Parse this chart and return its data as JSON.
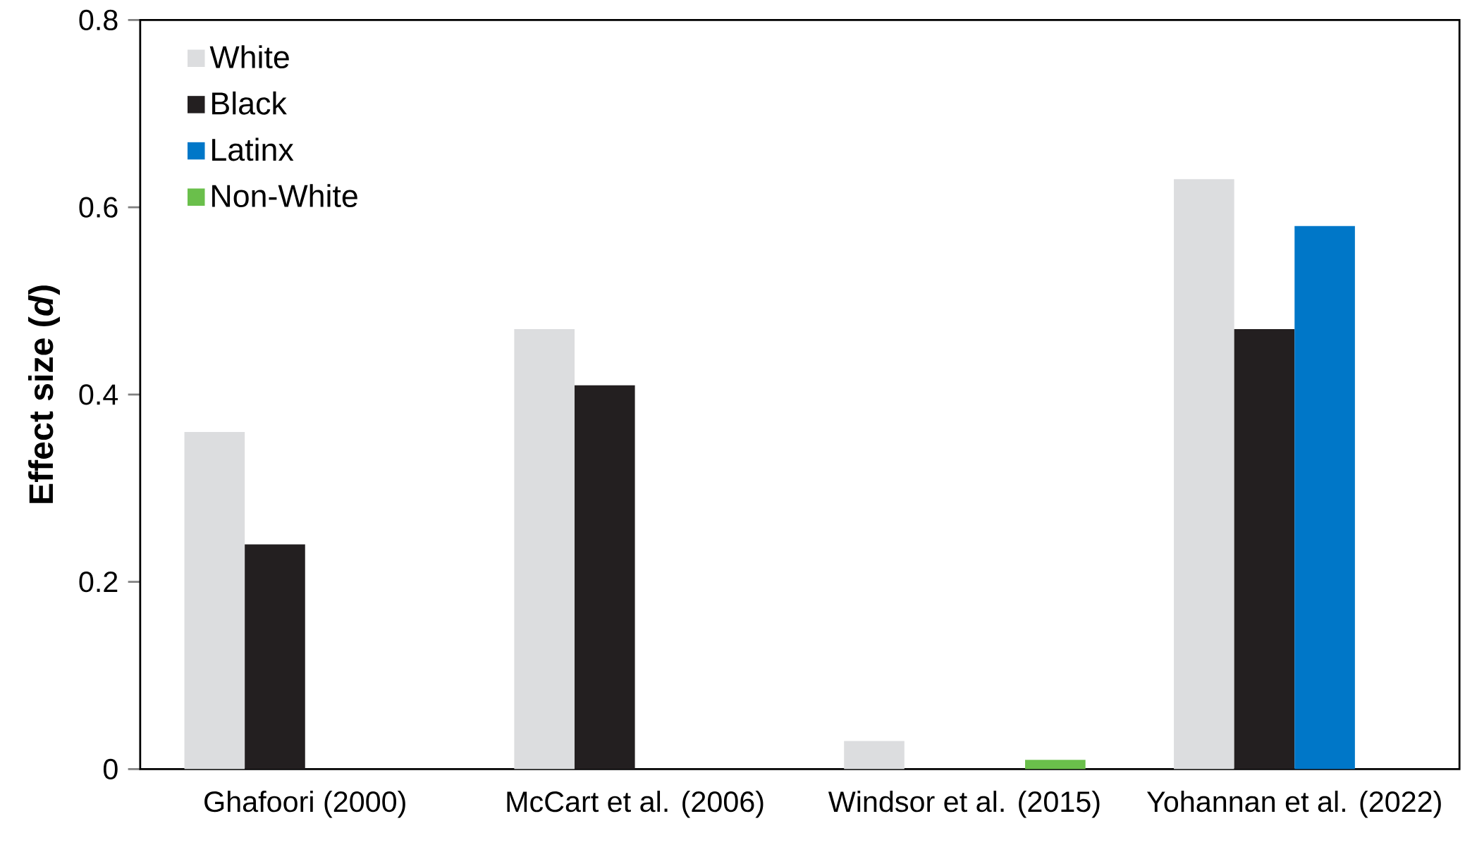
{
  "chart_data": {
    "type": "bar",
    "ylabel": "Effect size (*d*)",
    "categories": [
      "Ghafoori (2000)",
      "McCart et al. (2006)",
      "Windsor et al. (2015)",
      "Yohannan et al. (2022)"
    ],
    "series": [
      {
        "name": "White",
        "color": "#dcdddf",
        "values": [
          0.36,
          0.47,
          0.03,
          0.63
        ]
      },
      {
        "name": "Black",
        "color": "#231f20",
        "values": [
          0.24,
          0.41,
          null,
          0.47
        ]
      },
      {
        "name": "Latinx",
        "color": "#0077c8",
        "values": [
          null,
          null,
          null,
          0.58
        ]
      },
      {
        "name": "Non-White",
        "color": "#6abf4b",
        "values": [
          null,
          null,
          0.01,
          null
        ]
      }
    ],
    "ylim": [
      0,
      0.8
    ],
    "yticks": [
      0,
      0.2,
      0.4,
      0.6,
      0.8
    ],
    "legend": "top left",
    "grid": false
  }
}
